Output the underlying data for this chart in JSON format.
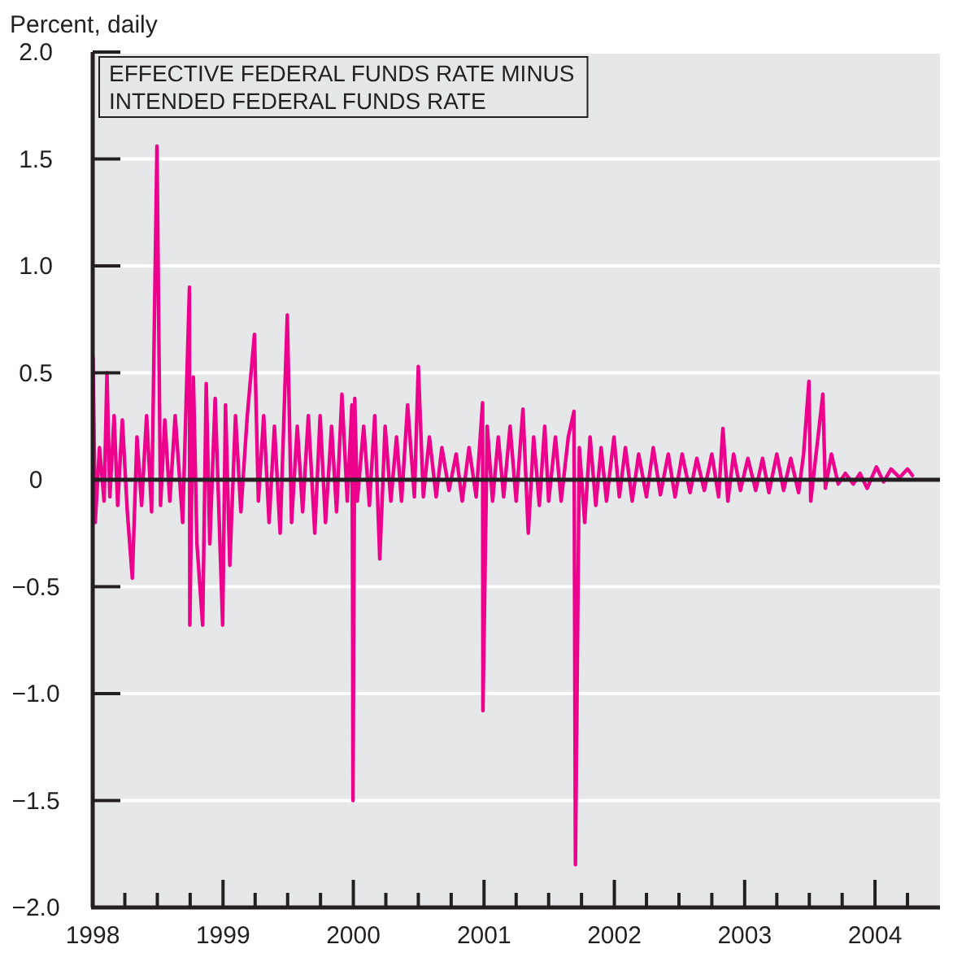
{
  "chart_data": {
    "type": "line",
    "title": "EFFECTIVE FEDERAL FUNDS RATE MINUS INTENDED FEDERAL FUNDS RATE",
    "ylabel": "Percent, daily",
    "x": [
      "1998-01-02",
      "1998-01-08",
      "1998-01-20",
      "1998-02-02",
      "1998-02-10",
      "1998-02-18",
      "1998-03-02",
      "1998-03-12",
      "1998-03-25",
      "1998-04-08",
      "1998-04-22",
      "1998-05-05",
      "1998-05-18",
      "1998-06-01",
      "1998-06-15",
      "1998-06-30",
      "1998-07-10",
      "1998-07-22",
      "1998-08-05",
      "1998-08-20",
      "1998-09-10",
      "1998-09-29",
      "1998-09-30",
      "1998-10-10",
      "1998-10-20",
      "1998-11-05",
      "1998-11-15",
      "1998-11-25",
      "1998-12-10",
      "1998-12-31",
      "1999-01-08",
      "1999-01-20",
      "1999-02-05",
      "1999-02-20",
      "1999-03-10",
      "1999-03-30",
      "1999-04-10",
      "1999-04-25",
      "1999-05-10",
      "1999-05-25",
      "1999-06-10",
      "1999-06-30",
      "1999-07-12",
      "1999-07-28",
      "1999-08-12",
      "1999-08-28",
      "1999-09-15",
      "1999-09-30",
      "1999-10-15",
      "1999-11-01",
      "1999-11-15",
      "1999-11-30",
      "1999-12-15",
      "1999-12-28",
      "1999-12-30",
      "1999-12-31",
      "2000-01-05",
      "2000-01-12",
      "2000-01-30",
      "2000-02-15",
      "2000-03-01",
      "2000-03-15",
      "2000-03-30",
      "2000-04-15",
      "2000-05-01",
      "2000-05-15",
      "2000-06-01",
      "2000-06-20",
      "2000-07-01",
      "2000-07-15",
      "2000-08-01",
      "2000-08-20",
      "2000-09-05",
      "2000-09-25",
      "2000-10-15",
      "2000-11-01",
      "2000-11-20",
      "2000-12-10",
      "2000-12-28",
      "2000-12-29",
      "2001-01-10",
      "2001-01-25",
      "2001-02-10",
      "2001-02-25",
      "2001-03-15",
      "2001-04-01",
      "2001-04-20",
      "2001-05-05",
      "2001-05-20",
      "2001-06-05",
      "2001-06-20",
      "2001-07-01",
      "2001-07-20",
      "2001-08-05",
      "2001-08-25",
      "2001-09-10",
      "2001-09-14",
      "2001-09-25",
      "2001-10-10",
      "2001-10-25",
      "2001-11-10",
      "2001-11-25",
      "2001-12-10",
      "2001-12-31",
      "2002-01-15",
      "2002-02-01",
      "2002-02-20",
      "2002-03-10",
      "2002-04-01",
      "2002-04-20",
      "2002-05-10",
      "2002-06-01",
      "2002-06-20",
      "2002-07-10",
      "2002-08-01",
      "2002-08-20",
      "2002-09-10",
      "2002-10-01",
      "2002-10-20",
      "2002-11-01",
      "2002-11-15",
      "2002-12-01",
      "2002-12-20",
      "2003-01-10",
      "2003-02-01",
      "2003-02-20",
      "2003-03-10",
      "2003-04-01",
      "2003-04-20",
      "2003-05-10",
      "2003-06-01",
      "2003-06-15",
      "2003-06-30",
      "2003-07-05",
      "2003-07-20",
      "2003-08-08",
      "2003-08-15",
      "2003-09-01",
      "2003-09-20",
      "2003-10-10",
      "2003-11-01",
      "2003-11-20",
      "2003-12-10",
      "2004-01-05",
      "2004-01-25",
      "2004-02-15",
      "2004-03-10",
      "2004-04-01",
      "2004-04-15"
    ],
    "series": [
      {
        "color": "#ec008c",
        "values": [
          0.57,
          -0.2,
          0.15,
          -0.1,
          0.5,
          -0.08,
          0.3,
          -0.12,
          0.28,
          -0.15,
          -0.46,
          0.2,
          -0.12,
          0.3,
          -0.15,
          1.56,
          -0.12,
          0.28,
          -0.1,
          0.3,
          -0.2,
          0.9,
          -0.68,
          0.48,
          -0.3,
          -0.68,
          0.45,
          -0.3,
          0.38,
          -0.68,
          0.35,
          -0.4,
          0.3,
          -0.15,
          0.3,
          0.68,
          -0.1,
          0.3,
          -0.2,
          0.25,
          -0.25,
          0.77,
          -0.2,
          0.25,
          -0.15,
          0.3,
          -0.25,
          0.3,
          -0.2,
          0.25,
          -0.15,
          0.4,
          -0.1,
          0.35,
          -0.55,
          -1.5,
          0.38,
          -0.1,
          0.25,
          -0.12,
          0.3,
          -0.37,
          0.25,
          -0.1,
          0.2,
          -0.1,
          0.35,
          -0.08,
          0.53,
          -0.08,
          0.2,
          -0.08,
          0.15,
          -0.05,
          0.12,
          -0.1,
          0.15,
          -0.08,
          0.36,
          -1.08,
          0.25,
          -0.1,
          0.2,
          -0.08,
          0.25,
          -0.1,
          0.33,
          -0.25,
          0.2,
          -0.12,
          0.25,
          -0.1,
          0.2,
          -0.1,
          0.2,
          0.32,
          -1.8,
          0.15,
          -0.2,
          0.2,
          -0.12,
          0.15,
          -0.1,
          0.2,
          -0.08,
          0.15,
          -0.1,
          0.12,
          -0.08,
          0.15,
          -0.07,
          0.12,
          -0.08,
          0.12,
          -0.06,
          0.1,
          -0.05,
          0.12,
          -0.08,
          0.24,
          -0.1,
          0.12,
          -0.05,
          0.1,
          -0.05,
          0.1,
          -0.06,
          0.12,
          -0.05,
          0.1,
          -0.06,
          0.12,
          0.46,
          -0.1,
          0.12,
          0.4,
          -0.04,
          0.12,
          -0.02,
          0.03,
          -0.02,
          0.03,
          -0.04,
          0.06,
          -0.01,
          0.05,
          0.01,
          0.05,
          0.02
        ]
      }
    ],
    "xlim": [
      "1998-01-01",
      "2004-07-01"
    ],
    "xticks": [
      {
        "value": "1998-01-01",
        "label": "1998"
      },
      {
        "value": "1998-04-01",
        "label": null
      },
      {
        "value": "1998-07-01",
        "label": null
      },
      {
        "value": "1998-10-01",
        "label": null
      },
      {
        "value": "1999-01-01",
        "label": "1999"
      },
      {
        "value": "1999-04-01",
        "label": null
      },
      {
        "value": "1999-07-01",
        "label": null
      },
      {
        "value": "1999-10-01",
        "label": null
      },
      {
        "value": "2000-01-01",
        "label": "2000"
      },
      {
        "value": "2000-04-01",
        "label": null
      },
      {
        "value": "2000-07-01",
        "label": null
      },
      {
        "value": "2000-10-01",
        "label": null
      },
      {
        "value": "2001-01-01",
        "label": "2001"
      },
      {
        "value": "2001-04-01",
        "label": null
      },
      {
        "value": "2001-07-01",
        "label": null
      },
      {
        "value": "2001-10-01",
        "label": null
      },
      {
        "value": "2002-01-01",
        "label": "2002"
      },
      {
        "value": "2002-04-01",
        "label": null
      },
      {
        "value": "2002-07-01",
        "label": null
      },
      {
        "value": "2002-10-01",
        "label": null
      },
      {
        "value": "2003-01-01",
        "label": "2003"
      },
      {
        "value": "2003-04-01",
        "label": null
      },
      {
        "value": "2003-07-01",
        "label": null
      },
      {
        "value": "2003-10-01",
        "label": null
      },
      {
        "value": "2004-01-01",
        "label": "2004"
      },
      {
        "value": "2004-04-01",
        "label": null
      }
    ],
    "ylim": [
      -2,
      2
    ],
    "yticks": [
      {
        "value": -2,
        "label": "−2.0"
      },
      {
        "value": -1.5,
        "label": "−1.5"
      },
      {
        "value": -1,
        "label": "−1.0"
      },
      {
        "value": -0.5,
        "label": "−0.5"
      },
      0,
      {
        "value": 0.5,
        "label": "0.5"
      },
      {
        "value": 1,
        "label": "1.0"
      },
      {
        "value": 1.5,
        "label": "1.5"
      },
      {
        "value": 2,
        "label": "2.0"
      }
    ],
    "grid": "y",
    "ref_lines": [
      {
        "axis": "y",
        "value": 0,
        "color": "#231f20"
      }
    ]
  }
}
